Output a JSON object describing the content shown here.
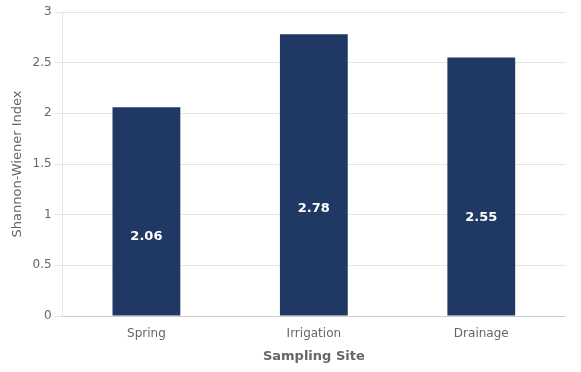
{
  "chart_data": {
    "type": "bar",
    "categories": [
      "Spring",
      "Irrigation",
      "Drainage"
    ],
    "values": [
      2.06,
      2.78,
      2.55
    ],
    "color": "#1f3864",
    "xlabel": "Sampling Site",
    "ylabel": "Shannon-Wiener Index",
    "ylim": [
      0,
      3
    ],
    "yticks": [
      0,
      0.5,
      1,
      1.5,
      2,
      2.5,
      3
    ],
    "grid": true,
    "data_labels": true
  }
}
